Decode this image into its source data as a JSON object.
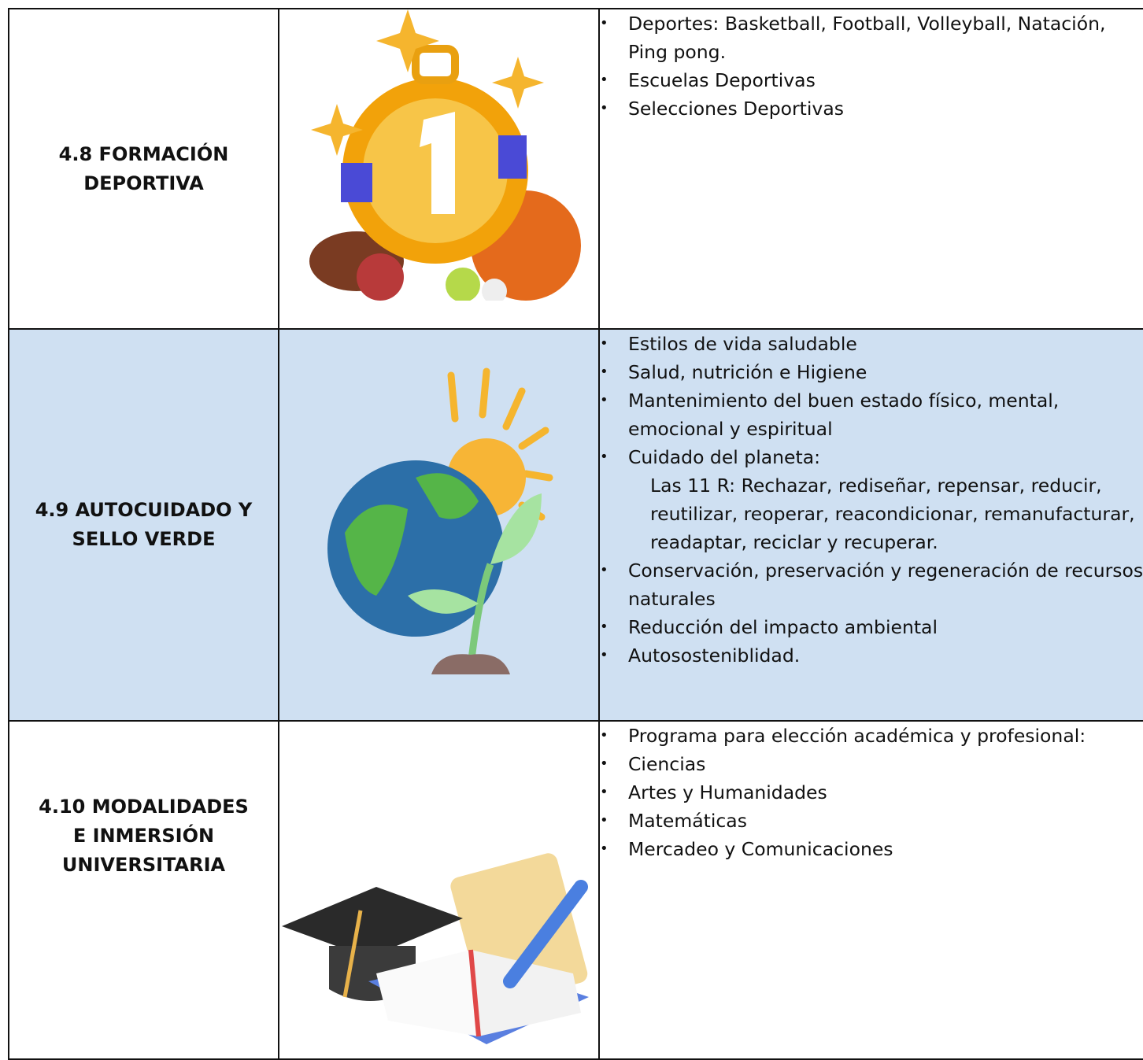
{
  "table": {
    "rows": [
      {
        "title": "4.8 FORMACIÓN DEPORTIVA",
        "items": [
          {
            "text": "Deportes: Basketball, Football, Volleyball, Natación, Ping pong."
          },
          {
            "text": "Escuelas Deportivas"
          },
          {
            "text": "Selecciones Deportivas"
          }
        ]
      },
      {
        "title": "4.9 AUTOCUIDADO Y SELLO VERDE",
        "items": [
          {
            "text": "Estilos de vida saludable"
          },
          {
            "text": "Salud, nutrición e Higiene"
          },
          {
            "text": "Mantenimiento del buen estado físico, mental, emocional y espiritual"
          },
          {
            "text": "Cuidado del planeta:",
            "note": "Las 11 R: Rechazar, rediseñar, repensar, reducir, reutilizar, reoperar, reacondicionar, remanufacturar, readaptar, reciclar y recuperar."
          },
          {
            "text": "Conservación, preservación y regeneración de recursos naturales"
          },
          {
            "text": "Reducción del impacto ambiental"
          },
          {
            "text": "Autososteniblidad."
          }
        ]
      },
      {
        "title": "4.10 MODALIDADES E INMERSIÓN UNIVERSITARIA",
        "items": [
          {
            "text": "Programa para elección académica y profesional:"
          },
          {
            "text": "Ciencias"
          },
          {
            "text": "Artes y Humanidades"
          },
          {
            "text": "Matemáticas"
          },
          {
            "text": "Mercadeo y Comunicaciones"
          }
        ]
      }
    ]
  }
}
